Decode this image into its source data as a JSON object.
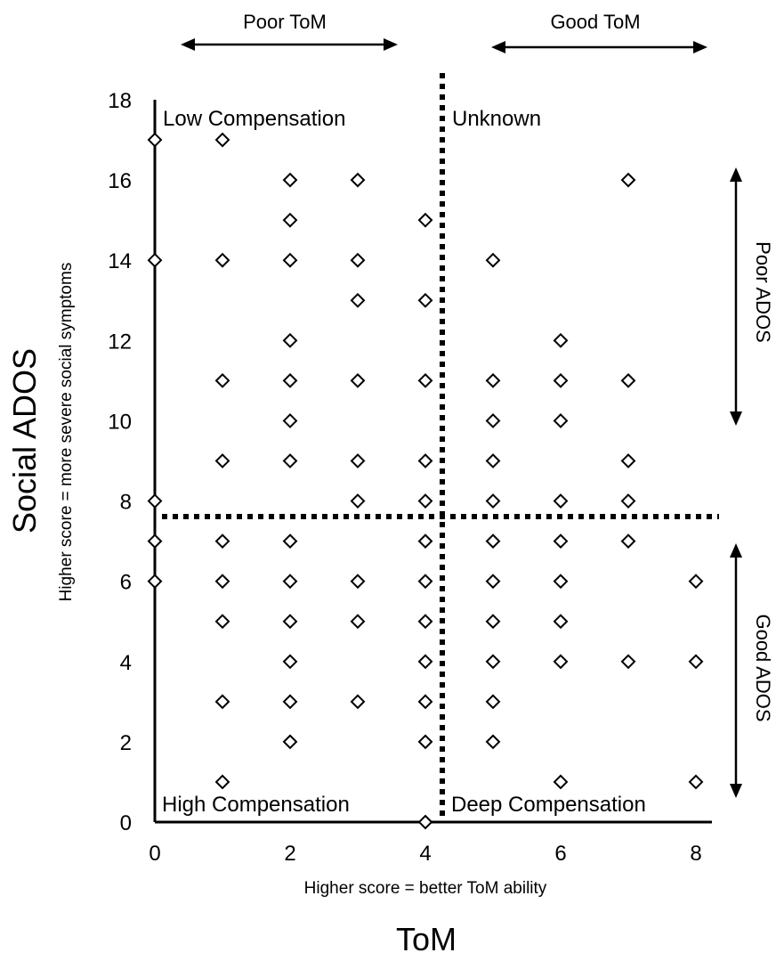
{
  "chart_data": {
    "type": "scatter",
    "title": "",
    "xlabel": "ToM",
    "xsublabel": "Higher score = better ToM ability",
    "ylabel": "Social ADOS",
    "ysublabel": "Higher score = more severe social symptoms",
    "xlim": [
      0,
      8
    ],
    "ylim": [
      0,
      18
    ],
    "xticks": [
      0,
      2,
      4,
      6,
      8
    ],
    "yticks": [
      0,
      2,
      4,
      6,
      8,
      10,
      12,
      14,
      16,
      18
    ],
    "grid": false,
    "marker": "diamond",
    "thresholds": {
      "x": 4.25,
      "y": 7.6
    },
    "quadrants": {
      "top_left": "Low Compensation",
      "top_right": "Unknown",
      "bottom_left": "High Compensation",
      "bottom_right": "Deep Compensation"
    },
    "range_labels": {
      "top_left": "Poor ToM",
      "top_right": "Good ToM",
      "right_top": "Poor ADOS",
      "right_bottom": "Good ADOS"
    },
    "points": [
      [
        0,
        17
      ],
      [
        0,
        14
      ],
      [
        0,
        8
      ],
      [
        0,
        7
      ],
      [
        0,
        6
      ],
      [
        1,
        17
      ],
      [
        1,
        14
      ],
      [
        1,
        11
      ],
      [
        1,
        9
      ],
      [
        1,
        7
      ],
      [
        1,
        6
      ],
      [
        1,
        5
      ],
      [
        1,
        3
      ],
      [
        1,
        1
      ],
      [
        2,
        16
      ],
      [
        2,
        15
      ],
      [
        2,
        14
      ],
      [
        2,
        12
      ],
      [
        2,
        11
      ],
      [
        2,
        10
      ],
      [
        2,
        9
      ],
      [
        2,
        7
      ],
      [
        2,
        6
      ],
      [
        2,
        5
      ],
      [
        2,
        4
      ],
      [
        2,
        3
      ],
      [
        2,
        2
      ],
      [
        3,
        16
      ],
      [
        3,
        14
      ],
      [
        3,
        13
      ],
      [
        3,
        11
      ],
      [
        3,
        9
      ],
      [
        3,
        8
      ],
      [
        3,
        6
      ],
      [
        3,
        5
      ],
      [
        3,
        3
      ],
      [
        4,
        15
      ],
      [
        4,
        13
      ],
      [
        4,
        11
      ],
      [
        4,
        9
      ],
      [
        4,
        8
      ],
      [
        4,
        7
      ],
      [
        4,
        6
      ],
      [
        4,
        5
      ],
      [
        4,
        4
      ],
      [
        4,
        3
      ],
      [
        4,
        2
      ],
      [
        4,
        0
      ],
      [
        5,
        14
      ],
      [
        5,
        11
      ],
      [
        5,
        10
      ],
      [
        5,
        9
      ],
      [
        5,
        8
      ],
      [
        5,
        7
      ],
      [
        5,
        6
      ],
      [
        5,
        5
      ],
      [
        5,
        4
      ],
      [
        5,
        3
      ],
      [
        5,
        2
      ],
      [
        6,
        12
      ],
      [
        6,
        11
      ],
      [
        6,
        10
      ],
      [
        6,
        8
      ],
      [
        6,
        7
      ],
      [
        6,
        6
      ],
      [
        6,
        5
      ],
      [
        6,
        4
      ],
      [
        6,
        1
      ],
      [
        7,
        16
      ],
      [
        7,
        11
      ],
      [
        7,
        9
      ],
      [
        7,
        8
      ],
      [
        7,
        7
      ],
      [
        7,
        4
      ],
      [
        8,
        6
      ],
      [
        8,
        4
      ],
      [
        8,
        1
      ]
    ]
  }
}
